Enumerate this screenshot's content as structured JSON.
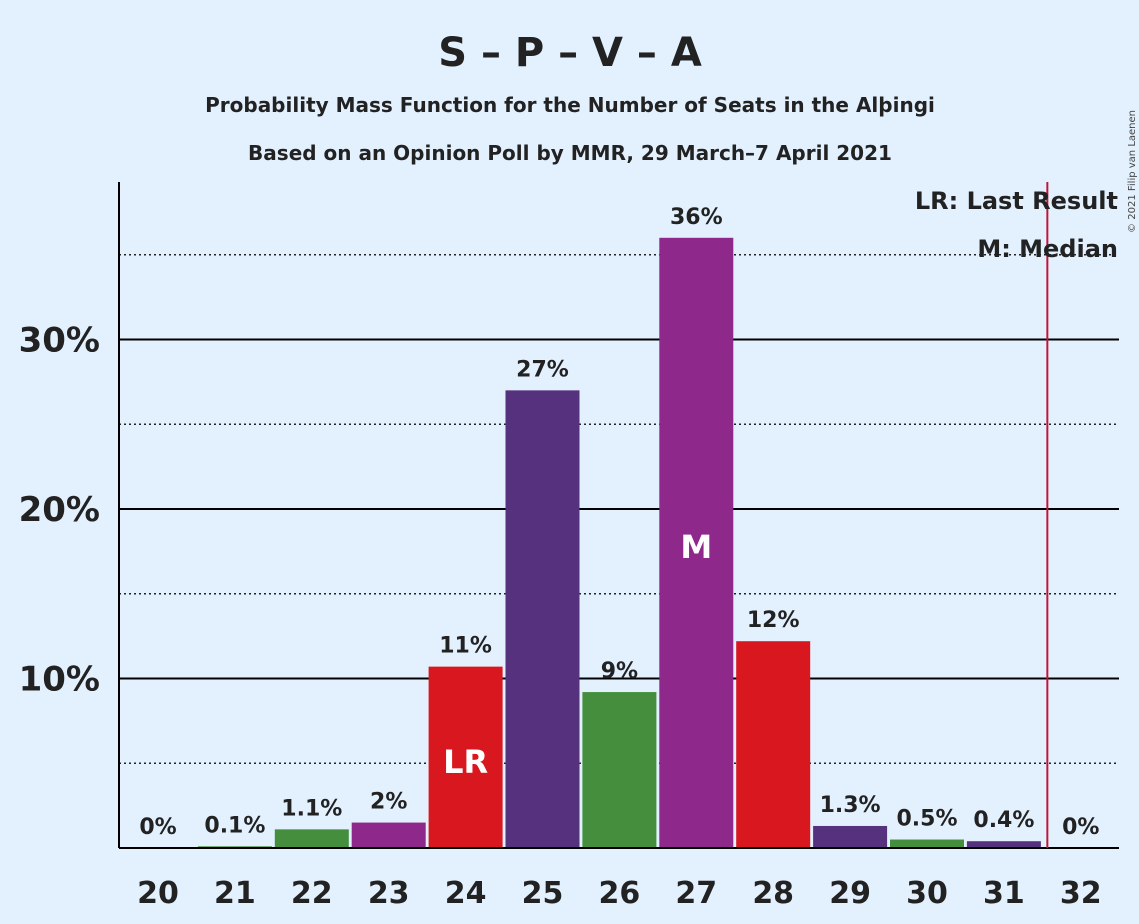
{
  "title": "S – P – V – A",
  "subtitle1": "Probability Mass Function for the Number of Seats in the Alþingi",
  "subtitle2": "Based on an Opinion Poll by MMR, 29 March–7 April 2021",
  "copyright": "© 2021 Filip van Laenen",
  "legend": {
    "last_result": "LR: Last Result",
    "median": "M: Median"
  },
  "colors": {
    "background": "#e3f1ff",
    "green": "#448e3e",
    "purple": "#8e288a",
    "red": "#d9171f",
    "dark_purple": "#56317e",
    "last_result_line": "#c0143c"
  },
  "chart_data": {
    "type": "bar",
    "categories": [
      "20",
      "21",
      "22",
      "23",
      "24",
      "25",
      "26",
      "27",
      "28",
      "29",
      "30",
      "31",
      "32"
    ],
    "values": [
      0,
      0.1,
      1.1,
      1.5,
      10.7,
      27,
      9.2,
      36,
      12.2,
      1.3,
      0.5,
      0.4,
      0
    ],
    "value_labels": [
      "0%",
      "0.1%",
      "1.1%",
      "2%",
      "11%",
      "27%",
      "9%",
      "36%",
      "12%",
      "1.3%",
      "0.5%",
      "0.4%",
      "0%"
    ],
    "bar_colors": [
      "#448e3e",
      "#448e3e",
      "#448e3e",
      "#8e288a",
      "#d9171f",
      "#56317e",
      "#448e3e",
      "#8e288a",
      "#d9171f",
      "#56317e",
      "#448e3e",
      "#56317e",
      "#448e3e"
    ],
    "inside_labels": {
      "24": "LR",
      "27": "M"
    },
    "last_result_seat": 31.5,
    "y_ticks": [
      10,
      20,
      30
    ],
    "y_tick_labels": [
      "10%",
      "20%",
      "30%"
    ],
    "y_minor_gridlines": [
      5,
      15,
      25,
      35
    ],
    "ylim": [
      0,
      39
    ]
  }
}
